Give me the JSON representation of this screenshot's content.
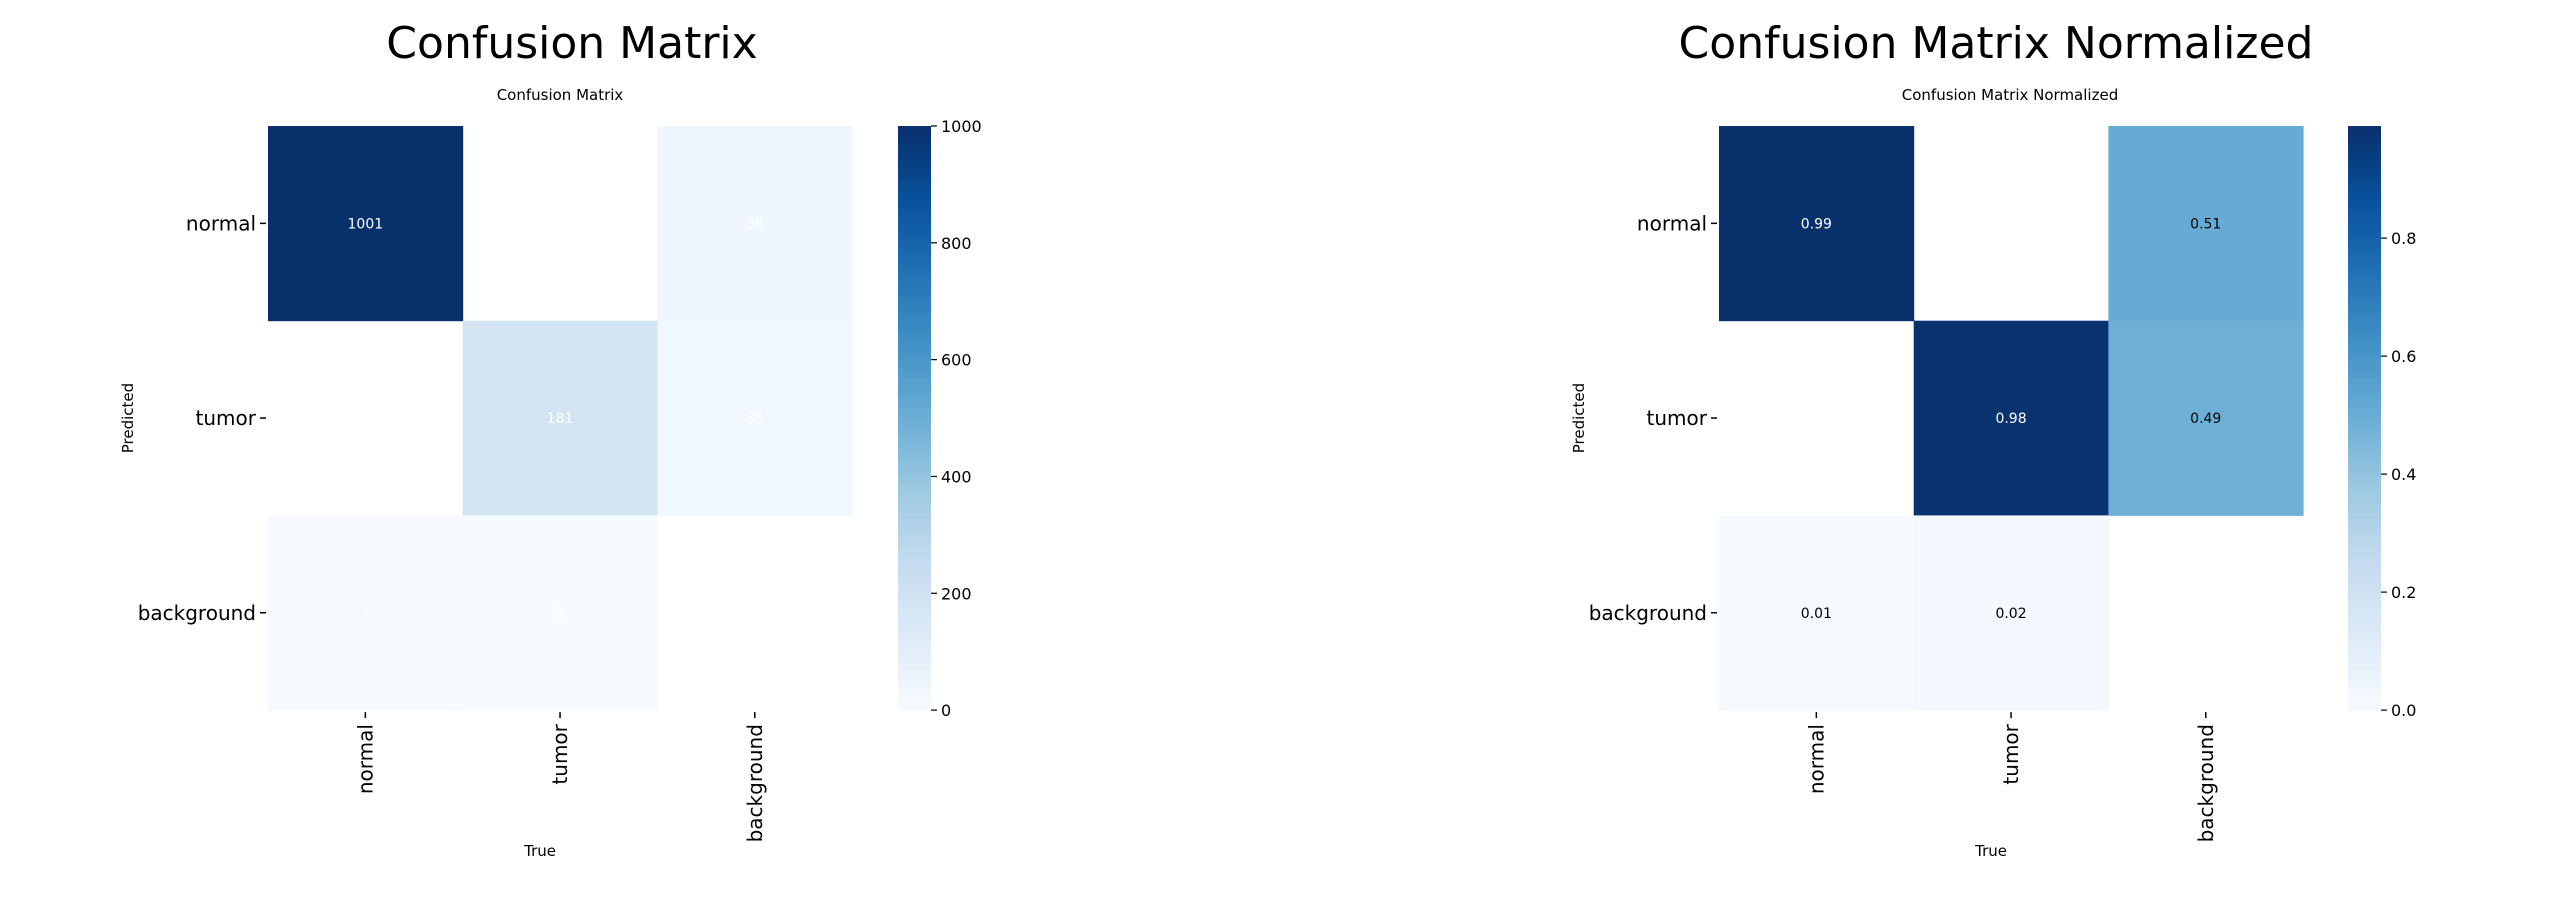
{
  "chart_data": [
    {
      "type": "heatmap",
      "figure_title": "Confusion Matrix",
      "title": "Confusion Matrix",
      "xlabel": "True",
      "ylabel": "Predicted",
      "x_categories": [
        "normal",
        "tumor",
        "background"
      ],
      "y_categories": [
        "normal",
        "tumor",
        "background"
      ],
      "values": [
        [
          1001,
          0,
          36
        ],
        [
          0,
          181,
          35
        ],
        [
          7,
          3,
          0
        ]
      ],
      "labels": [
        [
          "1001",
          "",
          "36"
        ],
        [
          "",
          "181",
          "35"
        ],
        [
          "7",
          "3",
          ""
        ]
      ],
      "colormap": "Blues",
      "vmin": 0,
      "vmax": 1000,
      "colorbar_ticks": [
        0,
        200,
        400,
        600,
        800,
        1000
      ],
      "colorbar_tick_labels": [
        "0",
        "200",
        "400",
        "600",
        "800",
        "1000"
      ],
      "annotation_color_dark": "#ffffff",
      "annotation_color_light": "#ffffff"
    },
    {
      "type": "heatmap",
      "figure_title": "Confusion Matrix Normalized",
      "title": "Confusion Matrix Normalized",
      "xlabel": "True",
      "ylabel": "Predicted",
      "x_categories": [
        "normal",
        "tumor",
        "background"
      ],
      "y_categories": [
        "normal",
        "tumor",
        "background"
      ],
      "values": [
        [
          0.99,
          0,
          0.51
        ],
        [
          0,
          0.98,
          0.49
        ],
        [
          0.01,
          0.02,
          0
        ]
      ],
      "labels": [
        [
          "0.99",
          "",
          "0.51"
        ],
        [
          "",
          "0.98",
          "0.49"
        ],
        [
          "0.01",
          "0.02",
          ""
        ]
      ],
      "colormap": "Blues",
      "vmin": 0,
      "vmax": 0.99,
      "colorbar_ticks": [
        0,
        0.2,
        0.4,
        0.6,
        0.8
      ],
      "colorbar_tick_labels": [
        "0.0",
        "0.2",
        "0.4",
        "0.6",
        "0.8"
      ],
      "annotation_color_dark": "#ffffff",
      "annotation_color_light": "#000000"
    }
  ]
}
